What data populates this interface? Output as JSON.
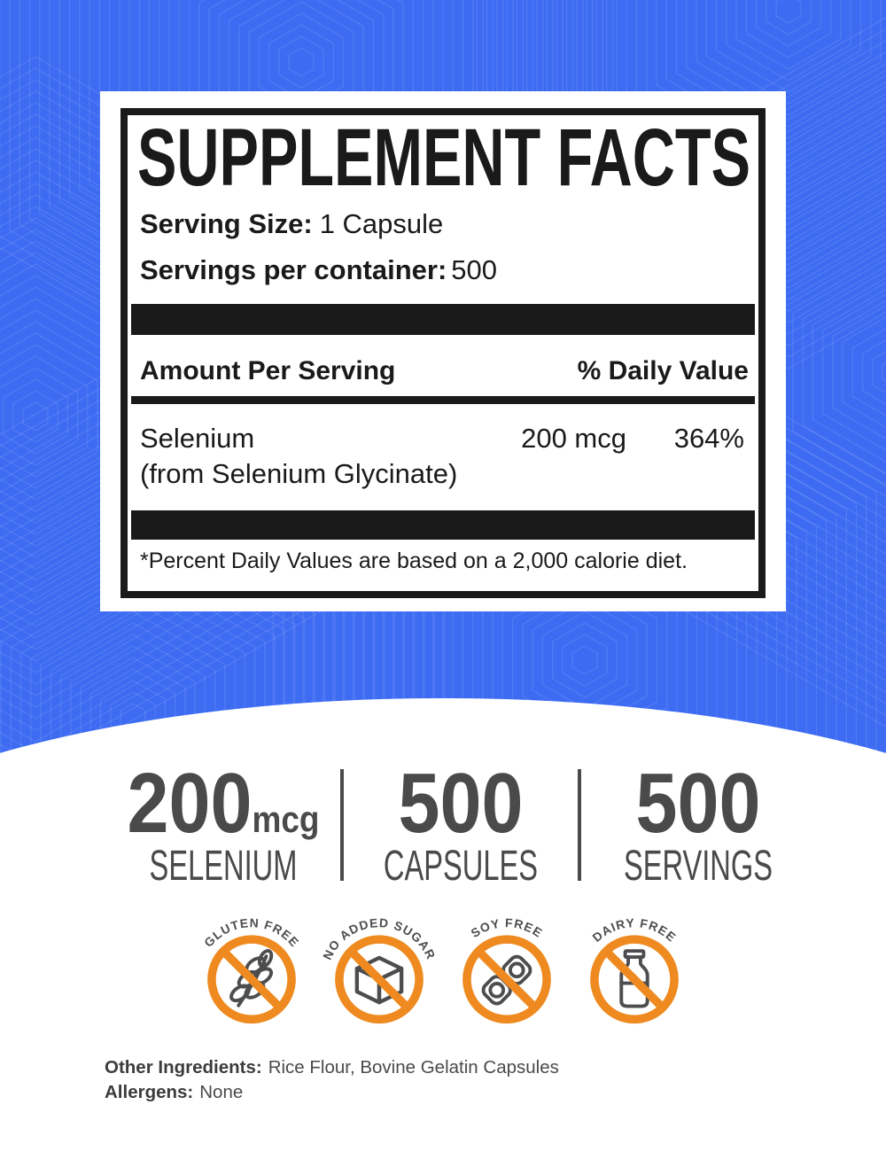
{
  "panel": {
    "title": "SUPPLEMENT FACTS",
    "serving_size_label": "Serving Size:",
    "serving_size_value": "1 Capsule",
    "servings_per_container_label": "Servings per container:",
    "servings_per_container_value": "500",
    "amount_per_serving_header": "Amount Per Serving",
    "daily_value_header": "% Daily Value",
    "ingredient": {
      "name": "Selenium",
      "source": "(from Selenium Glycinate)",
      "amount": "200 mcg",
      "daily_value": "364%"
    },
    "footnote": "*Percent Daily Values are based on a 2,000 calorie diet."
  },
  "stats": [
    {
      "value": "200",
      "unit": "mcg",
      "label": "SELENIUM"
    },
    {
      "value": "500",
      "unit": "",
      "label": "CAPSULES"
    },
    {
      "value": "500",
      "unit": "",
      "label": "SERVINGS"
    }
  ],
  "badges": [
    {
      "label": "GLUTEN FREE",
      "icon": "wheat-icon"
    },
    {
      "label": "NO ADDED SUGAR",
      "icon": "sugar-cube-icon"
    },
    {
      "label": "SOY FREE",
      "icon": "soybean-icon"
    },
    {
      "label": "DAIRY FREE",
      "icon": "milk-bottle-icon"
    }
  ],
  "footer": {
    "other_ingredients_label": "Other Ingredients:",
    "other_ingredients_value": "Rice Flour, Bovine Gelatin Capsules",
    "allergens_label": "Allergens:",
    "allergens_value": "None"
  },
  "colors": {
    "background_blue": "#3D6BF2",
    "badge_orange": "#EE8A1F",
    "stat_gray": "#4A4A4B",
    "ink": "#1A1A1A"
  }
}
